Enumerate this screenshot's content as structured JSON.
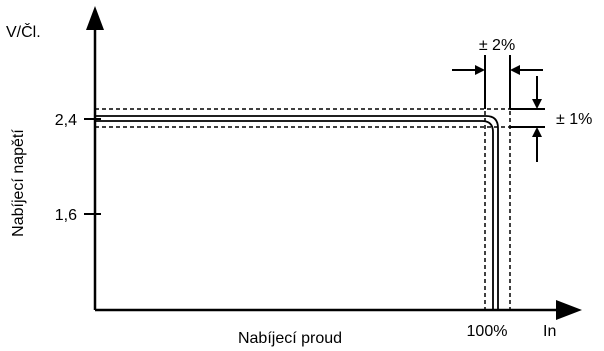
{
  "chart_data": {
    "type": "line",
    "title": "",
    "ylabel": "Nabíjecí napětí",
    "ylabel_unit": "V/Čl.",
    "xlabel": "Nabíjecí proud",
    "xlabel_unit": "In",
    "y_ticks": [
      "2,4",
      "1,6"
    ],
    "y_tick_values": [
      2.4,
      1.6
    ],
    "x_tick_label": "100%",
    "x_tick_value": 100,
    "tolerance_current_label": "± 2%",
    "tolerance_voltage_label": "± 1%",
    "series": [
      {
        "points": [
          [
            0,
            2.4
          ],
          [
            100,
            2.4
          ],
          [
            100,
            0
          ]
        ]
      }
    ],
    "tolerance_voltage_pct": 1,
    "tolerance_current_pct": 2,
    "grid": false,
    "colors": {
      "line": "#000000",
      "background": "#ffffff"
    }
  }
}
